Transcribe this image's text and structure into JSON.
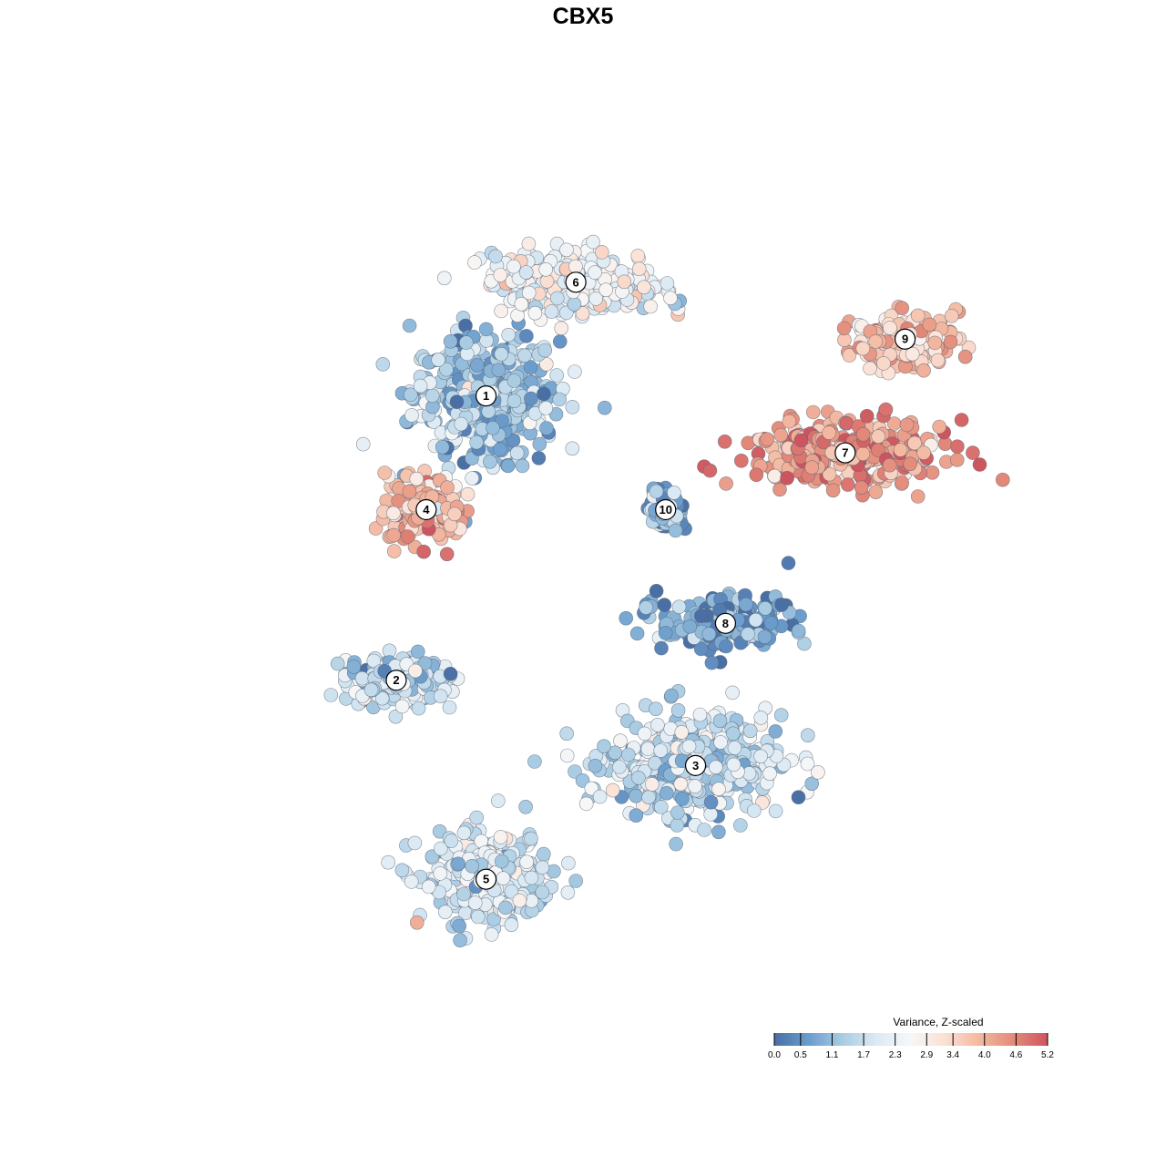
{
  "chart_data": {
    "type": "scatter",
    "title": "CBX5",
    "xlabel": "",
    "ylabel": "",
    "grid": false,
    "legend_placement": "bottom-right",
    "color_scale": {
      "title": "Variance, Z-scaled",
      "min": 0.0,
      "max": 5.2,
      "ticks": [
        "0.0",
        "0.5",
        "1.1",
        "1.7",
        "2.3",
        "2.9",
        "3.4",
        "4.0",
        "4.6",
        "5.2"
      ],
      "colors": [
        "#4a6fa5",
        "#6a9ccc",
        "#a9cce3",
        "#dceaf4",
        "#f7f7f7",
        "#fbe0d4",
        "#f3b8a0",
        "#e48a7a",
        "#cd5560"
      ]
    },
    "clusters": [
      {
        "label": "1",
        "x": 1,
        "y": 4,
        "value": 1.3,
        "spread": [
          2.2,
          2.0
        ]
      },
      {
        "label": "2",
        "x": -2,
        "y": -6,
        "value": 1.6,
        "spread": [
          1.6,
          0.8
        ]
      },
      {
        "label": "3",
        "x": 8,
        "y": -9,
        "value": 1.6,
        "spread": [
          2.6,
          1.6
        ]
      },
      {
        "label": "4",
        "x": -1,
        "y": 0,
        "value": 3.9,
        "spread": [
          1.2,
          1.1
        ]
      },
      {
        "label": "5",
        "x": 1,
        "y": -13,
        "value": 1.9,
        "spread": [
          2.0,
          1.4
        ]
      },
      {
        "label": "6",
        "x": 4,
        "y": 8,
        "value": 2.4,
        "spread": [
          2.6,
          1.0
        ]
      },
      {
        "label": "7",
        "x": 13,
        "y": 2,
        "value": 4.3,
        "spread": [
          3.0,
          1.0
        ]
      },
      {
        "label": "8",
        "x": 9,
        "y": -4,
        "value": 0.7,
        "spread": [
          2.0,
          0.9
        ]
      },
      {
        "label": "9",
        "x": 15,
        "y": 6,
        "value": 3.6,
        "spread": [
          1.6,
          0.8
        ]
      },
      {
        "label": "10",
        "x": 7,
        "y": 0,
        "value": 1.0,
        "spread": [
          0.5,
          0.7
        ]
      }
    ]
  }
}
